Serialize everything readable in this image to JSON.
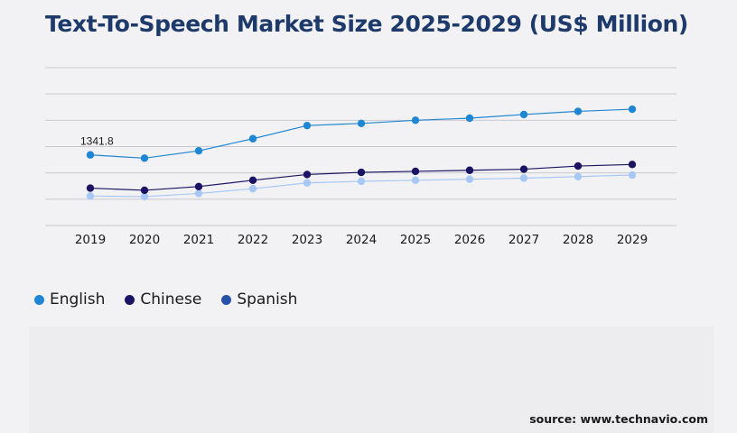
{
  "title": "Text-To-Speech Market Size 2025-2029 (US$ Million)",
  "source": "source: www.technavio.com",
  "legend": [
    {
      "name": "English",
      "color": "#1f86d4"
    },
    {
      "name": "Chinese",
      "color": "#1b1464"
    },
    {
      "name": "Spanish",
      "color": "#2850a8"
    }
  ],
  "chart_data": {
    "type": "line",
    "title": "Text-To-Speech Market Size 2025-2029 (US$ Million)",
    "x": [
      "2019",
      "2020",
      "2021",
      "2022",
      "2023",
      "2024",
      "2025",
      "2026",
      "2027",
      "2028",
      "2029"
    ],
    "ylim": [
      0,
      3000
    ],
    "grid": true,
    "legend_position": "bottom-left",
    "annotations": [
      {
        "x": "2019",
        "series": "English",
        "text": "1341.8"
      }
    ],
    "series": [
      {
        "name": "English",
        "color": "#1f86d4",
        "values": [
          1341.8,
          1280,
          1420,
          1650,
          1900,
          1940,
          2000,
          2040,
          2110,
          2170,
          2210
        ]
      },
      {
        "name": "Chinese",
        "color": "#1b1464",
        "values": [
          710,
          670,
          740,
          860,
          970,
          1010,
          1030,
          1050,
          1070,
          1130,
          1160
        ]
      },
      {
        "name": "Spanish",
        "color": "#a8c8f4",
        "values": [
          560,
          550,
          610,
          700,
          810,
          840,
          860,
          880,
          900,
          930,
          960
        ]
      }
    ]
  }
}
